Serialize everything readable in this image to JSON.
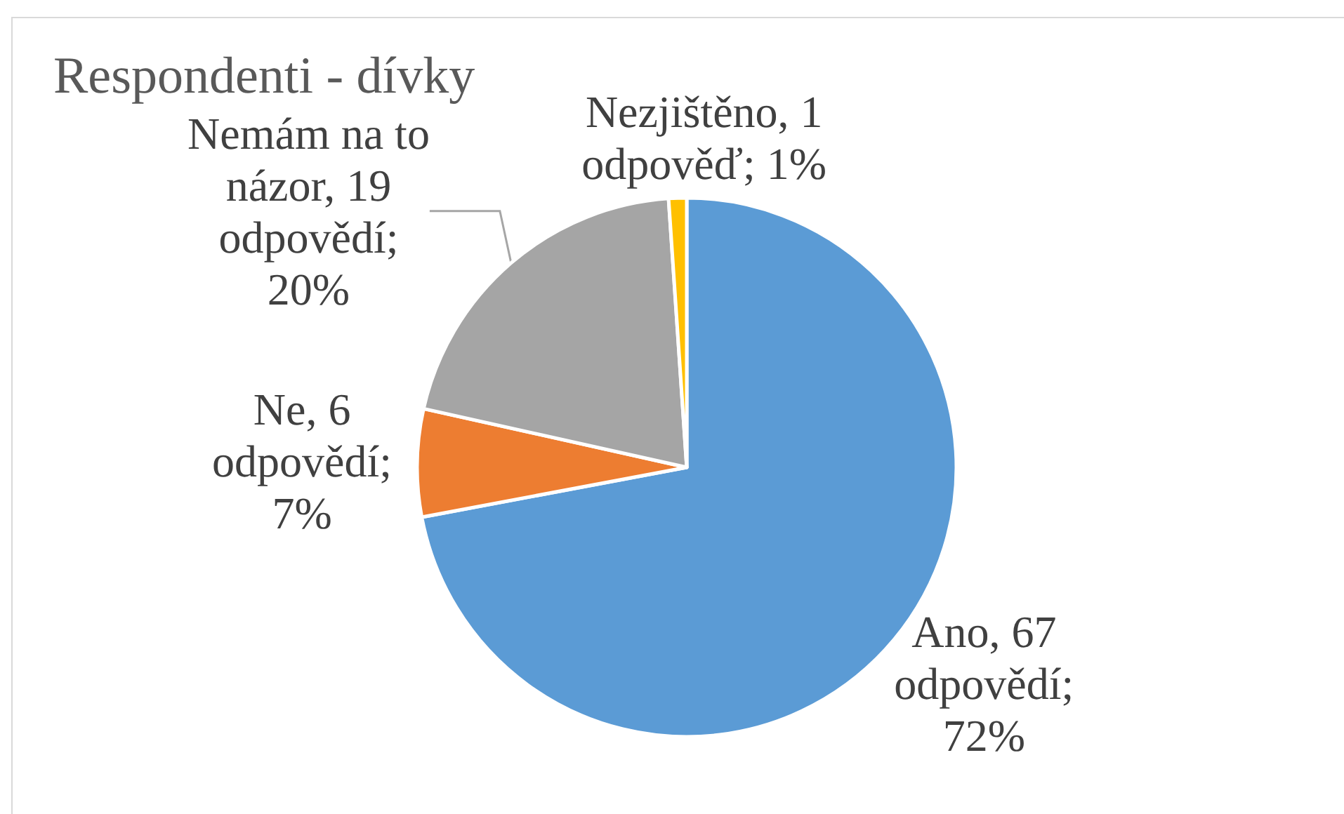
{
  "chart_data": {
    "type": "pie",
    "title": "Respondenti - dívky",
    "categories": [
      "Ano",
      "Ne",
      "Nemám na to názor",
      "Nezjištěno"
    ],
    "values": [
      67,
      6,
      19,
      1
    ],
    "colors": [
      "#5b9bd5",
      "#ed7d31",
      "#a5a5a5",
      "#ffc000"
    ],
    "value_labels": [
      "67 odpovědí; 72%",
      "6 odpovědí; 7%",
      "19 odpovědí; 20%",
      "1 odpověď; 1%"
    ]
  }
}
